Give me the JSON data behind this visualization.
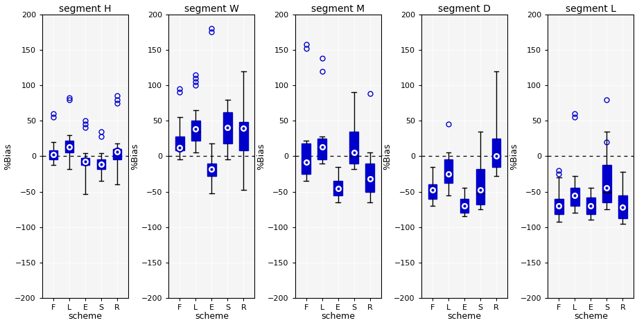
{
  "segments": [
    "H",
    "W",
    "M",
    "D",
    "L"
  ],
  "schemes": [
    "F",
    "L",
    "E",
    "S",
    "R"
  ],
  "ylabel": "%Bias",
  "xlabel": "scheme",
  "ylim": [
    -200,
    200
  ],
  "yticks": [
    -200,
    -150,
    -100,
    -50,
    0,
    50,
    100,
    150,
    200
  ],
  "color": "#0000CC",
  "bg_color": "#f2f2f2",
  "box_data": {
    "H": {
      "F": {
        "q1": -5,
        "median": 1,
        "q3": 8,
        "whislo": -12,
        "whishi": 20,
        "mean": 2,
        "fliers": [
          55,
          60
        ]
      },
      "L": {
        "q1": 5,
        "median": 12,
        "q3": 22,
        "whislo": -18,
        "whishi": 30,
        "mean": 13,
        "fliers": [
          80,
          82
        ]
      },
      "E": {
        "q1": -12,
        "median": -8,
        "q3": -3,
        "whislo": -53,
        "whishi": 4,
        "mean": -7,
        "fliers": [
          40,
          45,
          50
        ]
      },
      "S": {
        "q1": -18,
        "median": -12,
        "q3": -5,
        "whislo": -35,
        "whishi": 4,
        "mean": -11,
        "fliers": [
          28,
          35
        ]
      },
      "R": {
        "q1": -5,
        "median": 5,
        "q3": 10,
        "whislo": -40,
        "whishi": 18,
        "mean": 6,
        "fliers": [
          75,
          80,
          85
        ]
      }
    },
    "W": {
      "F": {
        "q1": 8,
        "median": 12,
        "q3": 28,
        "whislo": -5,
        "whishi": 55,
        "mean": 12,
        "fliers": [
          90,
          95
        ]
      },
      "L": {
        "q1": 22,
        "median": 35,
        "q3": 50,
        "whislo": 5,
        "whishi": 65,
        "mean": 38,
        "fliers": [
          100,
          105,
          110,
          115
        ]
      },
      "E": {
        "q1": -28,
        "median": -20,
        "q3": -10,
        "whislo": -52,
        "whishi": 18,
        "mean": -18,
        "fliers": [
          175,
          180
        ]
      },
      "S": {
        "q1": 18,
        "median": 38,
        "q3": 62,
        "whislo": -5,
        "whishi": 80,
        "mean": 40,
        "fliers": []
      },
      "R": {
        "q1": 8,
        "median": 38,
        "q3": 48,
        "whislo": -48,
        "whishi": 120,
        "mean": 39,
        "fliers": []
      }
    },
    "M": {
      "F": {
        "q1": -25,
        "median": -10,
        "q3": 18,
        "whislo": -35,
        "whishi": 22,
        "mean": -8,
        "fliers": [
          152,
          158
        ]
      },
      "L": {
        "q1": -5,
        "median": 12,
        "q3": 25,
        "whislo": -10,
        "whishi": 28,
        "mean": 13,
        "fliers": [
          120,
          138
        ]
      },
      "E": {
        "q1": -55,
        "median": -48,
        "q3": -35,
        "whislo": -65,
        "whishi": -15,
        "mean": -46,
        "fliers": []
      },
      "S": {
        "q1": -10,
        "median": 0,
        "q3": 35,
        "whislo": -18,
        "whishi": 90,
        "mean": 5,
        "fliers": []
      },
      "R": {
        "q1": -50,
        "median": -35,
        "q3": -10,
        "whislo": -65,
        "whishi": 5,
        "mean": -32,
        "fliers": [
          88
        ]
      }
    },
    "D": {
      "F": {
        "q1": -60,
        "median": -50,
        "q3": -40,
        "whislo": -70,
        "whishi": -15,
        "mean": -48,
        "fliers": []
      },
      "L": {
        "q1": -38,
        "median": -28,
        "q3": -5,
        "whislo": -55,
        "whishi": 5,
        "mean": -25,
        "fliers": [
          45
        ]
      },
      "E": {
        "q1": -80,
        "median": -72,
        "q3": -60,
        "whislo": -85,
        "whishi": -45,
        "mean": -70,
        "fliers": []
      },
      "S": {
        "q1": -68,
        "median": -52,
        "q3": -18,
        "whislo": -75,
        "whishi": 35,
        "mean": -48,
        "fliers": []
      },
      "R": {
        "q1": -15,
        "median": -2,
        "q3": 25,
        "whislo": -28,
        "whishi": 120,
        "mean": 0,
        "fliers": []
      }
    },
    "L": {
      "F": {
        "q1": -82,
        "median": -72,
        "q3": -60,
        "whislo": -92,
        "whishi": -30,
        "mean": -70,
        "fliers": [
          -20,
          -25
        ]
      },
      "L": {
        "q1": -70,
        "median": -58,
        "q3": -45,
        "whislo": -80,
        "whishi": -28,
        "mean": -55,
        "fliers": [
          55,
          60
        ]
      },
      "E": {
        "q1": -82,
        "median": -72,
        "q3": -58,
        "whislo": -90,
        "whishi": -45,
        "mean": -70,
        "fliers": []
      },
      "S": {
        "q1": -65,
        "median": -50,
        "q3": -12,
        "whislo": -75,
        "whishi": 35,
        "mean": -45,
        "fliers": [
          20,
          80
        ]
      },
      "R": {
        "q1": -88,
        "median": -75,
        "q3": -55,
        "whislo": -95,
        "whishi": -22,
        "mean": -72,
        "fliers": []
      }
    }
  }
}
